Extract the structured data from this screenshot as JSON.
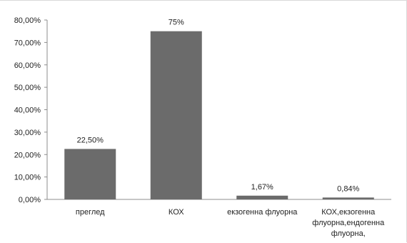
{
  "chart_data": {
    "type": "bar",
    "title": "",
    "xlabel": "",
    "ylabel": "",
    "categories": [
      [
        "преглед"
      ],
      [
        "КОХ"
      ],
      [
        "екзогенна флуорна"
      ],
      [
        "КОХ,екзогенна",
        "флуорна,ендогенна",
        "флуорна,"
      ]
    ],
    "values": [
      22.5,
      75,
      1.67,
      0.84
    ],
    "data_labels": [
      "22,50%",
      "75%",
      "1,67%",
      "0,84%"
    ],
    "ylim": [
      0,
      80
    ],
    "yticks": [
      0,
      10,
      20,
      30,
      40,
      50,
      60,
      70,
      80
    ],
    "ytick_labels": [
      "0,00%",
      "10,00%",
      "20,00%",
      "30,00%",
      "40,00%",
      "50,00%",
      "60,00%",
      "70,00%",
      "80,00%"
    ],
    "grid": false,
    "legend": "none",
    "bar_color": "#6b6b6b",
    "axis_color": "#8c8c8c"
  }
}
